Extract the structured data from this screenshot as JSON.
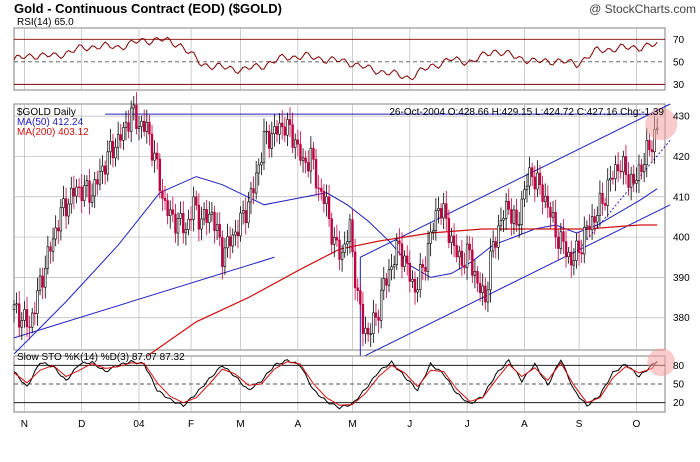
{
  "header": {
    "title": "Gold - Continuous Contract (EOD) ($GOLD)",
    "brand": "@ StockCharts.com"
  },
  "colors": {
    "background": "#ffffff",
    "panel_border": "#808080",
    "grid": "#b8b8b8",
    "price_line": "#000000",
    "up_candle": "#000000",
    "down_candle": "#c00040",
    "ma50": "#2020c0",
    "ma200": "#d01010",
    "channel": "#2020c0",
    "rsi_line": "#800000",
    "stoch_k": "#000000",
    "stoch_d": "#d01010",
    "highlight": "#f4a0a0"
  },
  "chart_data": [
    {
      "type": "line",
      "panel": "rsi",
      "label": "RSI(14) 65.0",
      "y_ticks": [
        "70",
        "50",
        "30"
      ],
      "ylim": [
        25,
        80
      ],
      "levels": [
        70,
        50,
        30
      ],
      "x_index_range": [
        0,
        250
      ],
      "series": [
        {
          "x": [
            0,
            8,
            16,
            24,
            32,
            40,
            48,
            56,
            64,
            72,
            80,
            88,
            96,
            104,
            112,
            120,
            128,
            136,
            144,
            152,
            160,
            168,
            176,
            184,
            192,
            200,
            208,
            216,
            224,
            232,
            240,
            247
          ],
          "values": [
            52,
            56,
            55,
            61,
            64,
            63,
            68,
            70,
            65,
            48,
            45,
            43,
            47,
            54,
            55,
            52,
            50,
            44,
            40,
            36,
            46,
            52,
            50,
            60,
            55,
            50,
            51,
            48,
            60,
            62,
            63,
            65
          ]
        }
      ]
    },
    {
      "type": "candlestick",
      "panel": "price",
      "label": "$GOLD Daily",
      "ohlc_label": "26-Oct-2004 O:428.66 H:429.15 L:424.72 C:427.16 Chg:-1.39",
      "ma50_label": "MA(50) 412.24",
      "ma200_label": "MA(200) 403.12",
      "y_ticks": [
        "430",
        "420",
        "410",
        "400",
        "390",
        "380"
      ],
      "ylim": [
        372,
        433
      ],
      "x_ticks": [
        "N",
        "D",
        "04",
        "F",
        "M",
        "A",
        "M",
        "J",
        "J",
        "A",
        "S",
        "O"
      ],
      "x_tick_index": [
        4,
        26,
        48,
        68,
        87,
        109,
        130,
        152,
        174,
        196,
        217,
        239
      ],
      "x_index_range": [
        0,
        250
      ],
      "price_anchors": {
        "x": [
          0,
          6,
          12,
          18,
          24,
          30,
          36,
          42,
          45,
          48,
          51,
          54,
          57,
          60,
          63,
          66,
          69,
          72,
          76,
          80,
          84,
          88,
          92,
          96,
          100,
          104,
          108,
          111,
          114,
          117,
          120,
          123,
          126,
          129,
          132,
          134,
          136,
          139,
          142,
          145,
          148,
          151,
          154,
          157,
          160,
          163,
          166,
          169,
          172,
          175,
          178,
          181,
          184,
          187,
          190,
          193,
          196,
          199,
          202,
          205,
          208,
          211,
          214,
          217,
          220,
          223,
          226,
          229,
          232,
          235,
          238,
          241,
          244,
          247
        ],
        "values": [
          382,
          378,
          393,
          406,
          412,
          411,
          420,
          426,
          431,
          428,
          427,
          420,
          410,
          405,
          404,
          402,
          408,
          404,
          406,
          396,
          400,
          405,
          412,
          424,
          426,
          428,
          424,
          418,
          420,
          412,
          408,
          398,
          396,
          402,
          385,
          378,
          376,
          380,
          388,
          393,
          398,
          392,
          387,
          392,
          400,
          408,
          404,
          397,
          394,
          396,
          388,
          385,
          398,
          404,
          408,
          402,
          412,
          416,
          412,
          408,
          401,
          398,
          394,
          397,
          402,
          405,
          409,
          414,
          418,
          416,
          413,
          418,
          422,
          427
        ]
      },
      "ma50": {
        "x": [
          0,
          20,
          40,
          56,
          70,
          80,
          96,
          104,
          112,
          120,
          128,
          136,
          144,
          152,
          160,
          168,
          176,
          184,
          192,
          200,
          208,
          216,
          224,
          232,
          240,
          247
        ],
        "values": [
          371,
          384,
          398,
          411,
          415,
          413,
          408,
          409,
          410,
          411,
          408,
          404,
          399,
          393,
          390,
          391,
          394,
          398,
          400,
          402,
          403,
          401,
          403,
          406,
          409,
          412
        ]
      },
      "ma200": {
        "x": [
          50,
          70,
          90,
          110,
          125,
          140,
          160,
          180,
          200,
          220,
          240,
          247
        ],
        "values": [
          370,
          379,
          385,
          392,
          397,
          399,
          401,
          402,
          402,
          402,
          403,
          403
        ]
      },
      "annotations": {
        "resistance": {
          "x": [
            35,
            247
          ],
          "value": 430.5
        },
        "channel_upper": {
          "x": [
            133,
            252
          ],
          "values": [
            395,
            433
          ]
        },
        "channel_lower": {
          "x": [
            133,
            252
          ],
          "values": [
            370,
            408
          ]
        },
        "dotted_trend": {
          "x": [
            217,
            252
          ],
          "values": [
            397,
            424
          ]
        },
        "support_line": {
          "x": [
            0,
            100
          ],
          "values": [
            375,
            395
          ]
        }
      }
    },
    {
      "type": "line",
      "panel": "stochastics",
      "label": "Slow STO %K(14) %D(3) 87.07 87.32",
      "y_ticks": [
        "80",
        "50",
        "20"
      ],
      "ylim": [
        5,
        95
      ],
      "levels": [
        80,
        50,
        20
      ],
      "x_index_range": [
        0,
        250
      ],
      "series": [
        {
          "name": "%K",
          "x": [
            0,
            5,
            10,
            15,
            20,
            25,
            30,
            35,
            40,
            45,
            50,
            55,
            60,
            65,
            70,
            75,
            80,
            85,
            90,
            95,
            100,
            105,
            110,
            115,
            120,
            125,
            130,
            135,
            140,
            145,
            150,
            155,
            160,
            165,
            170,
            175,
            180,
            185,
            190,
            195,
            200,
            205,
            210,
            215,
            220,
            225,
            230,
            235,
            240,
            245,
            247
          ],
          "values": [
            70,
            45,
            85,
            78,
            55,
            82,
            85,
            70,
            80,
            86,
            82,
            40,
            25,
            15,
            35,
            58,
            80,
            62,
            40,
            55,
            80,
            88,
            80,
            40,
            22,
            12,
            18,
            42,
            70,
            85,
            62,
            40,
            82,
            66,
            35,
            18,
            30,
            65,
            88,
            55,
            82,
            48,
            90,
            40,
            15,
            32,
            68,
            82,
            62,
            80,
            87
          ]
        },
        {
          "name": "%D",
          "x": [
            0,
            5,
            10,
            15,
            20,
            25,
            30,
            35,
            40,
            45,
            50,
            55,
            60,
            65,
            70,
            75,
            80,
            85,
            90,
            95,
            100,
            105,
            110,
            115,
            120,
            125,
            130,
            135,
            140,
            145,
            150,
            155,
            160,
            165,
            170,
            175,
            180,
            185,
            190,
            195,
            200,
            205,
            210,
            215,
            220,
            225,
            230,
            235,
            240,
            245,
            247
          ],
          "values": [
            68,
            52,
            72,
            80,
            62,
            72,
            83,
            75,
            78,
            84,
            83,
            52,
            30,
            20,
            28,
            50,
            74,
            66,
            48,
            50,
            74,
            86,
            82,
            50,
            28,
            16,
            17,
            35,
            62,
            80,
            68,
            46,
            72,
            70,
            42,
            22,
            28,
            56,
            82,
            62,
            76,
            56,
            84,
            48,
            20,
            28,
            60,
            78,
            68,
            75,
            87
          ]
        }
      ]
    }
  ]
}
